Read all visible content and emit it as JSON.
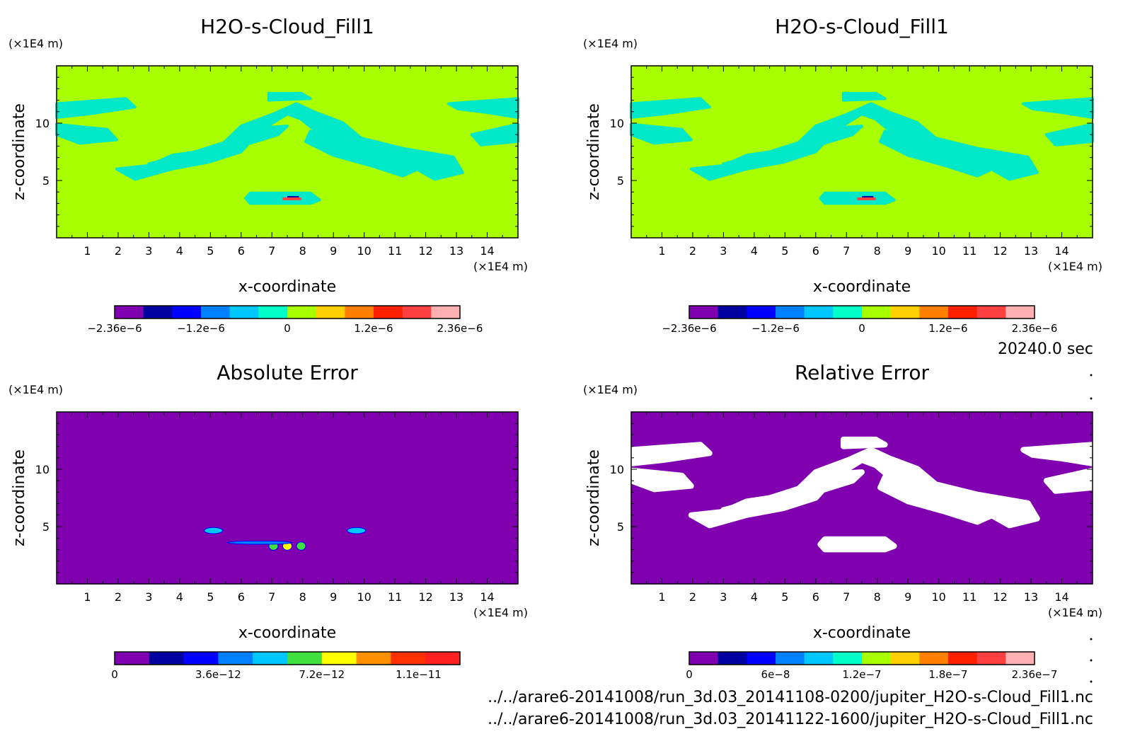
{
  "chart_data": [
    {
      "type": "heatmap",
      "title": "H2O-s-Cloud_Fill1",
      "xlabel": "x-coordinate",
      "ylabel": "z-coordinate",
      "xunit": "(×1E4 m)",
      "yunit": "(×1E4 m)",
      "xlim": [
        0,
        15
      ],
      "ylim": [
        0,
        15
      ],
      "xticks": [
        "1",
        "2",
        "3",
        "4",
        "5",
        "6",
        "7",
        "8",
        "9",
        "10",
        "11",
        "12",
        "13",
        "14"
      ],
      "yticks": [
        "5",
        "10"
      ],
      "background_color": "#a8ff00",
      "band_color": "#00e8c8",
      "colorbar": {
        "colors": [
          "#8000b0",
          "#0000a0",
          "#0000ff",
          "#0080ff",
          "#00c8ff",
          "#00ffc8",
          "#a8ff00",
          "#ffd000",
          "#ff8000",
          "#ff2000",
          "#ff4040",
          "#ffb0b0"
        ],
        "labels": [
          "−2.36e−6",
          "−1.2e−6",
          "0",
          "1.2e−6",
          "2.36e−6"
        ]
      }
    },
    {
      "type": "heatmap",
      "title": "H2O-s-Cloud_Fill1",
      "xlabel": "x-coordinate",
      "ylabel": "z-coordinate",
      "xunit": "(×1E4 m)",
      "yunit": "(×1E4 m)",
      "xlim": [
        0,
        15
      ],
      "ylim": [
        0,
        15
      ],
      "xticks": [
        "1",
        "2",
        "3",
        "4",
        "5",
        "6",
        "7",
        "8",
        "9",
        "10",
        "11",
        "12",
        "13",
        "14"
      ],
      "yticks": [
        "5",
        "10"
      ],
      "background_color": "#a8ff00",
      "band_color": "#00e8c8",
      "colorbar": {
        "colors": [
          "#8000b0",
          "#0000a0",
          "#0000ff",
          "#0080ff",
          "#00c8ff",
          "#00ffc8",
          "#a8ff00",
          "#ffd000",
          "#ff8000",
          "#ff2000",
          "#ff4040",
          "#ffb0b0"
        ],
        "labels": [
          "−2.36e−6",
          "−1.2e−6",
          "0",
          "1.2e−6",
          "2.36e−6"
        ]
      }
    },
    {
      "type": "heatmap",
      "title": "Absolute Error",
      "xlabel": "x-coordinate",
      "ylabel": "z-coordinate",
      "xunit": "(×1E4 m)",
      "yunit": "(×1E4 m)",
      "xlim": [
        0,
        15
      ],
      "ylim": [
        0,
        15
      ],
      "xticks": [
        "1",
        "2",
        "3",
        "4",
        "5",
        "6",
        "7",
        "8",
        "9",
        "10",
        "11",
        "12",
        "13",
        "14"
      ],
      "yticks": [
        "5",
        "10"
      ],
      "background_color": "#8000b0",
      "colorbar": {
        "colors": [
          "#8000b0",
          "#0000a0",
          "#0000ff",
          "#0080ff",
          "#00c8ff",
          "#40e040",
          "#ffff00",
          "#ff9000",
          "#ff3000",
          "#ff2020"
        ],
        "labels": [
          "0",
          "3.6e−12",
          "7.2e−12",
          "1.1e−11"
        ]
      }
    },
    {
      "type": "heatmap",
      "title": "Relative Error",
      "xlabel": "x-coordinate",
      "ylabel": "z-coordinate",
      "xunit": "(×1E4 m)",
      "yunit": "(×1E4 m)",
      "xlim": [
        0,
        15
      ],
      "ylim": [
        0,
        15
      ],
      "xticks": [
        "1",
        "2",
        "3",
        "4",
        "5",
        "6",
        "7",
        "8",
        "9",
        "10",
        "11",
        "12",
        "13",
        "14"
      ],
      "yticks": [
        "5",
        "10"
      ],
      "background_color": "#8000b0",
      "band_color": "#ffffff",
      "colorbar": {
        "colors": [
          "#8000b0",
          "#0000a0",
          "#0000ff",
          "#0080ff",
          "#00c8ff",
          "#00ffc8",
          "#a8ff00",
          "#ffd000",
          "#ff8000",
          "#ff2000",
          "#ff4040",
          "#ffb0b0"
        ],
        "labels": [
          "0",
          "6e−8",
          "1.2e−7",
          "1.8e−7",
          "2.36e−7"
        ]
      }
    }
  ],
  "footer": {
    "time": "20240.0 sec",
    "file1": "../../arare6-20141008/run_3d.03_20141108-0200/jupiter_H2O-s-Cloud_Fill1.nc",
    "file2": "../../arare6-20141008/run_3d.03_20141122-1600/jupiter_H2O-s-Cloud_Fill1.nc"
  }
}
